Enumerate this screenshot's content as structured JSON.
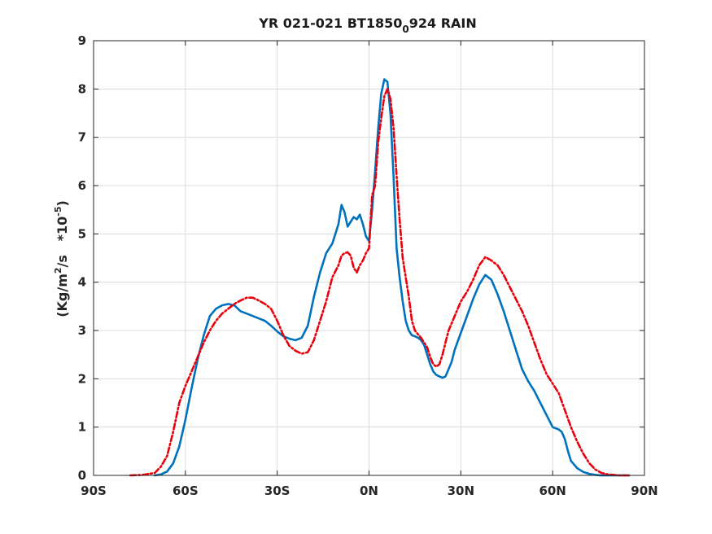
{
  "chart_data": {
    "type": "line",
    "title": {
      "main": "YR 021-021 BT1850",
      "sub": "0",
      "tail": "924 RAIN"
    },
    "ylabel": {
      "pre": "(Kg/m",
      "sup1": "2",
      "mid": "/s   *10",
      "sup2": "-5",
      "post": ")"
    },
    "xlim": [
      -90,
      90
    ],
    "ylim": [
      0,
      9
    ],
    "xticks": [
      -90,
      -60,
      -30,
      0,
      30,
      60,
      90
    ],
    "xtick_labels": [
      "90S",
      "60S",
      "30S",
      "0N",
      "30N",
      "60N",
      "90N"
    ],
    "yticks": [
      0,
      1,
      2,
      3,
      4,
      5,
      6,
      7,
      8,
      9
    ],
    "ytick_labels": [
      "0",
      "1",
      "2",
      "3",
      "4",
      "5",
      "6",
      "7",
      "8",
      "9"
    ],
    "grid": true,
    "series": [
      {
        "color": "#0072bd",
        "style": "solid",
        "points": [
          [
            -70,
            0
          ],
          [
            -68,
            0.02
          ],
          [
            -66,
            0.08
          ],
          [
            -64,
            0.25
          ],
          [
            -62,
            0.6
          ],
          [
            -60,
            1.15
          ],
          [
            -58,
            1.8
          ],
          [
            -56,
            2.4
          ],
          [
            -54,
            2.9
          ],
          [
            -52,
            3.3
          ],
          [
            -50,
            3.45
          ],
          [
            -48,
            3.52
          ],
          [
            -46,
            3.55
          ],
          [
            -44,
            3.52
          ],
          [
            -42,
            3.4
          ],
          [
            -40,
            3.35
          ],
          [
            -38,
            3.3
          ],
          [
            -36,
            3.25
          ],
          [
            -34,
            3.2
          ],
          [
            -32,
            3.1
          ],
          [
            -30,
            2.98
          ],
          [
            -28,
            2.88
          ],
          [
            -26,
            2.83
          ],
          [
            -24,
            2.8
          ],
          [
            -22,
            2.85
          ],
          [
            -20,
            3.1
          ],
          [
            -18,
            3.7
          ],
          [
            -16,
            4.2
          ],
          [
            -14,
            4.6
          ],
          [
            -12,
            4.8
          ],
          [
            -10,
            5.2
          ],
          [
            -9,
            5.6
          ],
          [
            -8,
            5.45
          ],
          [
            -7,
            5.15
          ],
          [
            -6,
            5.25
          ],
          [
            -5,
            5.35
          ],
          [
            -4,
            5.3
          ],
          [
            -3,
            5.4
          ],
          [
            -2,
            5.2
          ],
          [
            -1,
            4.95
          ],
          [
            0,
            4.85
          ],
          [
            1,
            5.5
          ],
          [
            2,
            6.3
          ],
          [
            3,
            7.2
          ],
          [
            4,
            7.9
          ],
          [
            5,
            8.2
          ],
          [
            6,
            8.15
          ],
          [
            7,
            7.5
          ],
          [
            8,
            6.2
          ],
          [
            9,
            4.7
          ],
          [
            10,
            4.1
          ],
          [
            11,
            3.6
          ],
          [
            12,
            3.2
          ],
          [
            13,
            3.0
          ],
          [
            14,
            2.9
          ],
          [
            15,
            2.88
          ],
          [
            16,
            2.85
          ],
          [
            17,
            2.8
          ],
          [
            18,
            2.7
          ],
          [
            19,
            2.5
          ],
          [
            20,
            2.3
          ],
          [
            21,
            2.15
          ],
          [
            22,
            2.08
          ],
          [
            23,
            2.05
          ],
          [
            24,
            2.02
          ],
          [
            25,
            2.05
          ],
          [
            26,
            2.2
          ],
          [
            27,
            2.35
          ],
          [
            28,
            2.6
          ],
          [
            30,
            2.95
          ],
          [
            32,
            3.3
          ],
          [
            34,
            3.65
          ],
          [
            36,
            3.95
          ],
          [
            38,
            4.15
          ],
          [
            40,
            4.05
          ],
          [
            42,
            3.75
          ],
          [
            44,
            3.4
          ],
          [
            46,
            3.0
          ],
          [
            48,
            2.6
          ],
          [
            50,
            2.2
          ],
          [
            52,
            1.95
          ],
          [
            54,
            1.75
          ],
          [
            56,
            1.5
          ],
          [
            58,
            1.25
          ],
          [
            60,
            1.0
          ],
          [
            62,
            0.95
          ],
          [
            63,
            0.9
          ],
          [
            64,
            0.75
          ],
          [
            65,
            0.5
          ],
          [
            66,
            0.3
          ],
          [
            68,
            0.15
          ],
          [
            70,
            0.07
          ],
          [
            72,
            0.03
          ],
          [
            74,
            0.01
          ],
          [
            76,
            0
          ],
          [
            80,
            0
          ],
          [
            85,
            0
          ]
        ]
      },
      {
        "color": "#e8000b",
        "style": "dashdot",
        "points": [
          [
            -78,
            0
          ],
          [
            -74,
            0.01
          ],
          [
            -72,
            0.03
          ],
          [
            -70,
            0.05
          ],
          [
            -68,
            0.18
          ],
          [
            -66,
            0.4
          ],
          [
            -64,
            0.9
          ],
          [
            -62,
            1.5
          ],
          [
            -60,
            1.85
          ],
          [
            -58,
            2.15
          ],
          [
            -56,
            2.45
          ],
          [
            -54,
            2.75
          ],
          [
            -52,
            3.0
          ],
          [
            -50,
            3.2
          ],
          [
            -48,
            3.35
          ],
          [
            -46,
            3.45
          ],
          [
            -44,
            3.55
          ],
          [
            -42,
            3.62
          ],
          [
            -40,
            3.68
          ],
          [
            -38,
            3.68
          ],
          [
            -36,
            3.62
          ],
          [
            -34,
            3.55
          ],
          [
            -32,
            3.45
          ],
          [
            -30,
            3.2
          ],
          [
            -28,
            2.9
          ],
          [
            -26,
            2.68
          ],
          [
            -24,
            2.58
          ],
          [
            -22,
            2.52
          ],
          [
            -20,
            2.55
          ],
          [
            -18,
            2.8
          ],
          [
            -16,
            3.2
          ],
          [
            -14,
            3.6
          ],
          [
            -12,
            4.1
          ],
          [
            -10,
            4.35
          ],
          [
            -9,
            4.55
          ],
          [
            -8,
            4.6
          ],
          [
            -7,
            4.62
          ],
          [
            -6,
            4.55
          ],
          [
            -5,
            4.3
          ],
          [
            -4,
            4.2
          ],
          [
            -3,
            4.35
          ],
          [
            -2,
            4.45
          ],
          [
            -1,
            4.6
          ],
          [
            0,
            4.7
          ],
          [
            1,
            5.8
          ],
          [
            2,
            6.0
          ],
          [
            3,
            6.9
          ],
          [
            4,
            7.4
          ],
          [
            5,
            7.85
          ],
          [
            6,
            8.0
          ],
          [
            7,
            7.8
          ],
          [
            8,
            7.2
          ],
          [
            9,
            6.2
          ],
          [
            10,
            5.3
          ],
          [
            11,
            4.5
          ],
          [
            12,
            4.1
          ],
          [
            13,
            3.7
          ],
          [
            14,
            3.2
          ],
          [
            15,
            3.0
          ],
          [
            16,
            2.92
          ],
          [
            17,
            2.85
          ],
          [
            18,
            2.75
          ],
          [
            19,
            2.65
          ],
          [
            20,
            2.45
          ],
          [
            21,
            2.3
          ],
          [
            22,
            2.25
          ],
          [
            23,
            2.3
          ],
          [
            24,
            2.5
          ],
          [
            25,
            2.75
          ],
          [
            26,
            3.0
          ],
          [
            28,
            3.3
          ],
          [
            30,
            3.6
          ],
          [
            32,
            3.8
          ],
          [
            34,
            4.05
          ],
          [
            36,
            4.35
          ],
          [
            38,
            4.52
          ],
          [
            40,
            4.45
          ],
          [
            42,
            4.35
          ],
          [
            44,
            4.15
          ],
          [
            46,
            3.9
          ],
          [
            48,
            3.65
          ],
          [
            50,
            3.4
          ],
          [
            52,
            3.1
          ],
          [
            54,
            2.75
          ],
          [
            56,
            2.4
          ],
          [
            58,
            2.1
          ],
          [
            60,
            1.9
          ],
          [
            62,
            1.7
          ],
          [
            64,
            1.35
          ],
          [
            66,
            1.0
          ],
          [
            68,
            0.7
          ],
          [
            70,
            0.45
          ],
          [
            72,
            0.25
          ],
          [
            74,
            0.12
          ],
          [
            76,
            0.05
          ],
          [
            78,
            0.02
          ],
          [
            80,
            0.01
          ],
          [
            82,
            0
          ],
          [
            85,
            0
          ]
        ]
      }
    ]
  }
}
